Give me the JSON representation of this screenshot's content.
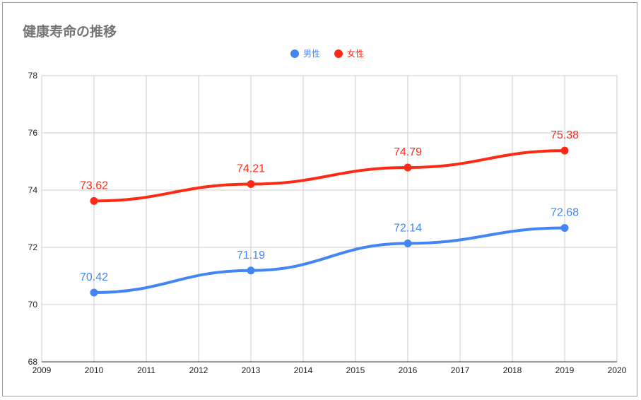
{
  "chart_data": {
    "type": "line",
    "title": "健康寿命の推移",
    "xlabel": "",
    "ylabel": "",
    "xlim": [
      2009,
      2020
    ],
    "ylim": [
      68,
      78
    ],
    "x_ticks": [
      "2009",
      "2010",
      "2011",
      "2012",
      "2013",
      "2014",
      "2015",
      "2016",
      "2017",
      "2018",
      "2019",
      "2020"
    ],
    "y_ticks": [
      "68",
      "70",
      "72",
      "74",
      "76",
      "78"
    ],
    "grid": true,
    "legend_position": "top-center",
    "series": [
      {
        "name": "男性",
        "color": "#4285f4",
        "x": [
          2010,
          2013,
          2016,
          2019
        ],
        "values": [
          70.42,
          71.19,
          72.14,
          72.68
        ],
        "labels": [
          "70.42",
          "71.19",
          "72.14",
          "72.68"
        ]
      },
      {
        "name": "女性",
        "color": "#ff2a16",
        "x": [
          2010,
          2013,
          2016,
          2019
        ],
        "values": [
          73.62,
          74.21,
          74.79,
          75.38
        ],
        "labels": [
          "73.62",
          "74.21",
          "74.79",
          "75.38"
        ]
      }
    ]
  }
}
